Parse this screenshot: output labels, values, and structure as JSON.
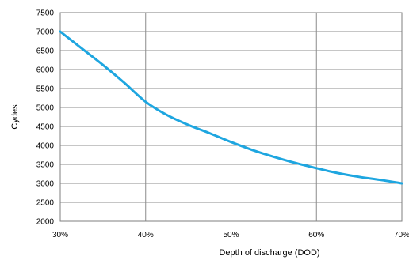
{
  "chart_data": {
    "type": "line",
    "title": "",
    "xlabel": "Depth of discharge (DOD)",
    "ylabel": "Cydes",
    "xlim": [
      30,
      70
    ],
    "ylim": [
      2000,
      7500
    ],
    "x_ticks": [
      "30%",
      "40%",
      "50%",
      "60%",
      "70%"
    ],
    "y_ticks": [
      "2000",
      "2500",
      "3000",
      "3500",
      "4000",
      "4500",
      "5000",
      "5500",
      "6000",
      "6500",
      "7000",
      "7500"
    ],
    "grid": true,
    "legend": "none",
    "series": [
      {
        "color": "#1ea6e0",
        "x": [
          30,
          32.5,
          35,
          37.5,
          40,
          42.5,
          45,
          47.5,
          50,
          52.5,
          55,
          57.5,
          60,
          62.5,
          65,
          67.5,
          70
        ],
        "y": [
          7000,
          6560,
          6120,
          5650,
          5150,
          4800,
          4540,
          4320,
          4090,
          3880,
          3700,
          3540,
          3400,
          3270,
          3170,
          3090,
          3000
        ]
      }
    ]
  }
}
